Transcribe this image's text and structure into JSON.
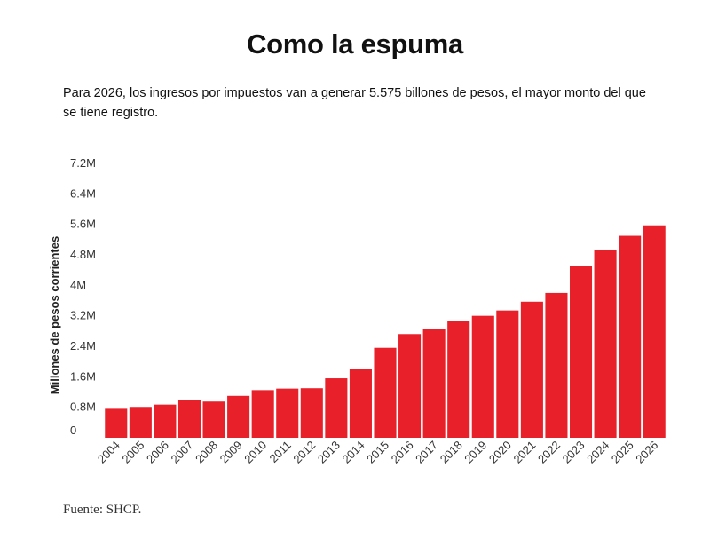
{
  "title": "Como la espuma",
  "subtitle": "Para 2026, los ingresos por impuestos van a generar 5.575 billones de pesos, el mayor monto del que se tiene registro.",
  "source": "Fuente: SHCP.",
  "colors": {
    "bar": "#e8202a",
    "text": "#111111"
  },
  "chart_data": {
    "type": "bar",
    "ylabel": "Millones de pesos corrientes",
    "ylim": [
      0,
      7.2
    ],
    "yticks": [
      {
        "value": 0,
        "label": "0"
      },
      {
        "value": 0.8,
        "label": "0.8M"
      },
      {
        "value": 1.6,
        "label": "1.6M"
      },
      {
        "value": 2.4,
        "label": "2.4M"
      },
      {
        "value": 3.2,
        "label": "3.2M"
      },
      {
        "value": 4.0,
        "label": "4M"
      },
      {
        "value": 4.8,
        "label": "4.8M"
      },
      {
        "value": 5.6,
        "label": "5.6M"
      },
      {
        "value": 6.4,
        "label": "6.4M"
      },
      {
        "value": 7.2,
        "label": "7.2M"
      }
    ],
    "categories": [
      "2004",
      "2005",
      "2006",
      "2007",
      "2008",
      "2009",
      "2010",
      "2011",
      "2012",
      "2013",
      "2014",
      "2015",
      "2016",
      "2017",
      "2018",
      "2019",
      "2020",
      "2021",
      "2022",
      "2023",
      "2024",
      "2025",
      "2026"
    ],
    "values": [
      0.76,
      0.81,
      0.87,
      0.98,
      0.95,
      1.1,
      1.25,
      1.29,
      1.3,
      1.56,
      1.8,
      2.36,
      2.72,
      2.85,
      3.06,
      3.2,
      3.34,
      3.57,
      3.8,
      4.52,
      4.94,
      5.3,
      5.575
    ],
    "grid": false,
    "legend": "none"
  }
}
